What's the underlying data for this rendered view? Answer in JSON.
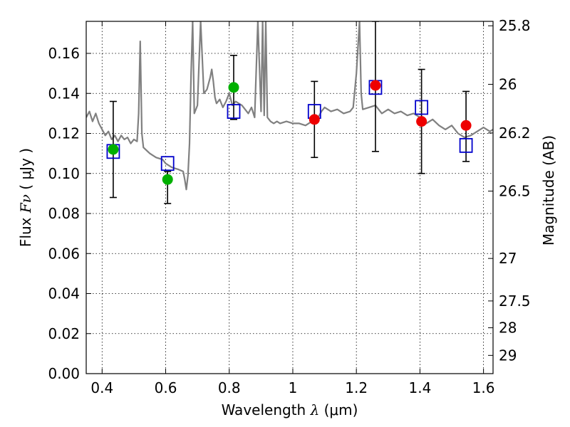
{
  "chart_data": {
    "type": "scatter",
    "title": "",
    "xlabel": "Wavelength",
    "xlabel_symbol": "λ",
    "xlabel_units": "(μm)",
    "ylabel": "Flux",
    "ylabel_symbol": "Fν",
    "ylabel_units": "( μJy )",
    "y2label": "Magnitude (AB)",
    "xlim": [
      0.35,
      1.63
    ],
    "ylim": [
      0.0,
      0.176
    ],
    "grid": true,
    "xticks": [
      {
        "value": 0.4,
        "label": "0.4"
      },
      {
        "value": 0.6,
        "label": "0.6"
      },
      {
        "value": 0.8,
        "label": "0.8"
      },
      {
        "value": 1.0,
        "label": "1"
      },
      {
        "value": 1.2,
        "label": "1.2"
      },
      {
        "value": 1.4,
        "label": "1.4"
      },
      {
        "value": 1.6,
        "label": "1.6"
      }
    ],
    "yticks": [
      {
        "value": 0.0,
        "label": "0.00"
      },
      {
        "value": 0.02,
        "label": "0.02"
      },
      {
        "value": 0.04,
        "label": "0.04"
      },
      {
        "value": 0.06,
        "label": "0.06"
      },
      {
        "value": 0.08,
        "label": "0.08"
      },
      {
        "value": 0.1,
        "label": "0.10"
      },
      {
        "value": 0.12,
        "label": "0.12"
      },
      {
        "value": 0.14,
        "label": "0.14"
      },
      {
        "value": 0.16,
        "label": "0.16"
      }
    ],
    "y2ticks": [
      {
        "mag": 25.8,
        "label": "25.8"
      },
      {
        "mag": 26.0,
        "label": "26"
      },
      {
        "mag": 26.2,
        "label": "26.2"
      },
      {
        "mag": 26.5,
        "label": "26.5"
      },
      {
        "mag": 27.0,
        "label": "27"
      },
      {
        "mag": 27.5,
        "label": "27.5"
      },
      {
        "mag": 28.0,
        "label": "28"
      },
      {
        "mag": 29.0,
        "label": "29"
      }
    ],
    "series": [
      {
        "kind": "line",
        "color": "#808080",
        "x": [
          0.35,
          0.36,
          0.37,
          0.38,
          0.39,
          0.4,
          0.41,
          0.42,
          0.43,
          0.44,
          0.45,
          0.46,
          0.47,
          0.48,
          0.49,
          0.5,
          0.51,
          0.515,
          0.52,
          0.525,
          0.53,
          0.55,
          0.57,
          0.59,
          0.6,
          0.62,
          0.64,
          0.655,
          0.66,
          0.665,
          0.67,
          0.675,
          0.68,
          0.685,
          0.69,
          0.7,
          0.71,
          0.72,
          0.73,
          0.74,
          0.745,
          0.75,
          0.755,
          0.76,
          0.77,
          0.78,
          0.79,
          0.8,
          0.81,
          0.82,
          0.83,
          0.84,
          0.85,
          0.86,
          0.87,
          0.88,
          0.89,
          0.9,
          0.905,
          0.91,
          0.915,
          0.92,
          0.93,
          0.94,
          0.95,
          0.96,
          0.98,
          1.0,
          1.02,
          1.04,
          1.06,
          1.08,
          1.09,
          1.1,
          1.12,
          1.14,
          1.16,
          1.18,
          1.19,
          1.2,
          1.21,
          1.215,
          1.22,
          1.24,
          1.26,
          1.28,
          1.3,
          1.32,
          1.34,
          1.36,
          1.38,
          1.4,
          1.42,
          1.44,
          1.46,
          1.48,
          1.5,
          1.52,
          1.54,
          1.56,
          1.58,
          1.6,
          1.62,
          1.63
        ],
        "y": [
          0.128,
          0.131,
          0.126,
          0.13,
          0.125,
          0.122,
          0.119,
          0.121,
          0.117,
          0.119,
          0.116,
          0.119,
          0.117,
          0.118,
          0.115,
          0.117,
          0.116,
          0.13,
          0.166,
          0.12,
          0.113,
          0.11,
          0.108,
          0.107,
          0.105,
          0.103,
          0.102,
          0.101,
          0.097,
          0.092,
          0.099,
          0.115,
          0.15,
          0.176,
          0.13,
          0.134,
          0.176,
          0.14,
          0.142,
          0.148,
          0.152,
          0.146,
          0.138,
          0.135,
          0.137,
          0.133,
          0.136,
          0.14,
          0.134,
          0.136,
          0.135,
          0.134,
          0.132,
          0.13,
          0.133,
          0.128,
          0.176,
          0.131,
          0.176,
          0.129,
          0.176,
          0.128,
          0.126,
          0.125,
          0.126,
          0.125,
          0.126,
          0.125,
          0.125,
          0.124,
          0.126,
          0.128,
          0.131,
          0.133,
          0.131,
          0.132,
          0.13,
          0.131,
          0.133,
          0.15,
          0.176,
          0.14,
          0.132,
          0.133,
          0.134,
          0.13,
          0.132,
          0.13,
          0.131,
          0.129,
          0.13,
          0.128,
          0.125,
          0.127,
          0.124,
          0.122,
          0.124,
          0.12,
          0.118,
          0.119,
          0.121,
          0.123,
          0.121,
          0.122
        ]
      },
      {
        "kind": "errorbar",
        "color": "#000000",
        "points": [
          {
            "x": 0.435,
            "low": 0.088,
            "high": 0.136
          },
          {
            "x": 0.606,
            "low": 0.085,
            "high": 0.101
          },
          {
            "x": 0.814,
            "low": 0.127,
            "high": 0.159
          },
          {
            "x": 1.068,
            "low": 0.108,
            "high": 0.146
          },
          {
            "x": 1.26,
            "low": 0.111,
            "high": 0.176
          },
          {
            "x": 1.405,
            "low": 0.1,
            "high": 0.152
          },
          {
            "x": 1.545,
            "low": 0.106,
            "high": 0.141
          }
        ]
      },
      {
        "kind": "open-square",
        "color": "#0000cc",
        "x": [
          0.435,
          0.606,
          0.814,
          1.068,
          1.26,
          1.405,
          1.545
        ],
        "y": [
          0.111,
          0.105,
          0.131,
          0.131,
          0.143,
          0.133,
          0.114
        ]
      },
      {
        "kind": "dot",
        "color": "#00b000",
        "x": [
          0.435,
          0.606,
          0.814
        ],
        "y": [
          0.112,
          0.097,
          0.143
        ]
      },
      {
        "kind": "dot",
        "color": "#ee0000",
        "x": [
          1.068,
          1.26,
          1.405,
          1.545
        ],
        "y": [
          0.127,
          0.144,
          0.126,
          0.124
        ]
      }
    ]
  }
}
